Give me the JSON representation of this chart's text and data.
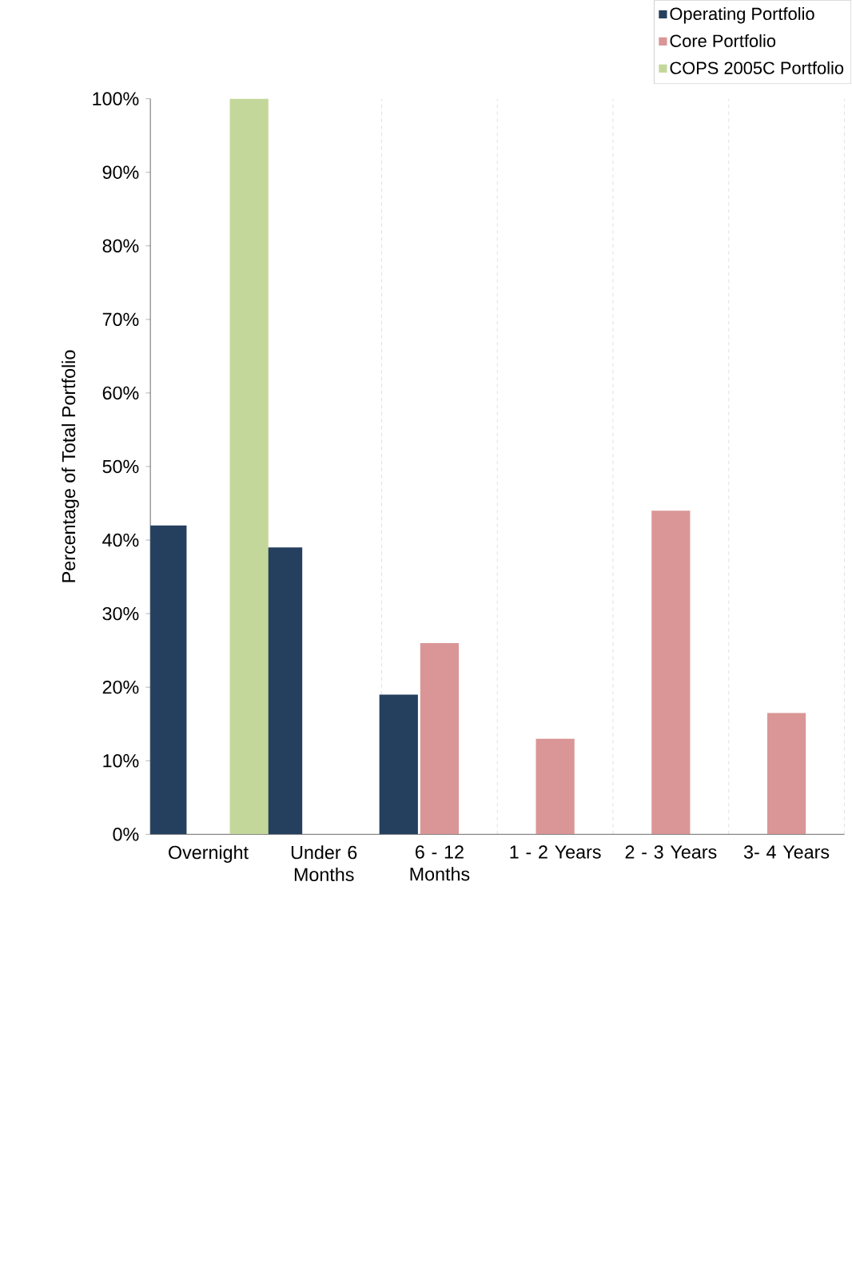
{
  "chart_data": {
    "type": "bar",
    "ylabel": "Percentage of Total Portfolio",
    "categories": [
      "Overnight",
      "Under 6 Months",
      "6 - 12 Months",
      "1 - 2 Years",
      "2 - 3 Years",
      "3- 4 Years"
    ],
    "series": [
      {
        "name": "Operating Portfolio",
        "color": "#253f5f",
        "values": [
          42,
          39,
          19,
          null,
          null,
          null
        ]
      },
      {
        "name": "Core Portfolio",
        "color": "#da9696",
        "values": [
          null,
          null,
          26,
          13,
          44,
          16.5
        ]
      },
      {
        "name": "COPS 2005C Portfolio",
        "color": "#c4d79b",
        "values": [
          100,
          null,
          null,
          null,
          null,
          null
        ]
      }
    ],
    "ylim": [
      0,
      100
    ],
    "yticks": [
      {
        "value": 0,
        "label": "0%"
      },
      {
        "value": 10,
        "label": "10%"
      },
      {
        "value": 20,
        "label": "20%"
      },
      {
        "value": 30,
        "label": "30%"
      },
      {
        "value": 40,
        "label": "40%"
      },
      {
        "value": 50,
        "label": "50%"
      },
      {
        "value": 60,
        "label": "60%"
      },
      {
        "value": 70,
        "label": "70%"
      },
      {
        "value": 80,
        "label": "80%"
      },
      {
        "value": 90,
        "label": "90%"
      },
      {
        "value": 100,
        "label": "100%"
      }
    ],
    "grid": "x",
    "legend": "top right"
  }
}
